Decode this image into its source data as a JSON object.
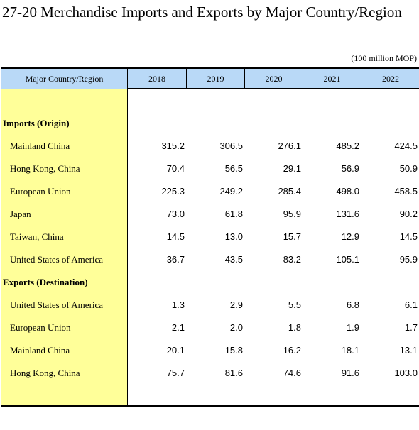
{
  "title": "27-20  Merchandise Imports and Exports by Major Country/Region",
  "unit_note": "(100 million MOP)",
  "header": {
    "first_col": "Major Country/Region",
    "years": [
      "2018",
      "2019",
      "2020",
      "2021",
      "2022"
    ]
  },
  "sections": [
    {
      "label": "Imports (Origin)",
      "rows": [
        {
          "label": "Mainland China",
          "values": [
            "315.2",
            "306.5",
            "276.1",
            "485.2",
            "424.5"
          ]
        },
        {
          "label": "Hong Kong, China",
          "values": [
            "70.4",
            "56.5",
            "29.1",
            "56.9",
            "50.9"
          ]
        },
        {
          "label": "European Union",
          "values": [
            "225.3",
            "249.2",
            "285.4",
            "498.0",
            "458.5"
          ]
        },
        {
          "label": "Japan",
          "values": [
            "73.0",
            "61.8",
            "95.9",
            "131.6",
            "90.2"
          ]
        },
        {
          "label": "Taiwan, China",
          "values": [
            "14.5",
            "13.0",
            "15.7",
            "12.9",
            "14.5"
          ]
        },
        {
          "label": "United States of America",
          "values": [
            "36.7",
            "43.5",
            "83.2",
            "105.1",
            "95.9"
          ]
        }
      ]
    },
    {
      "label": "Exports (Destination)",
      "rows": [
        {
          "label": "United States of America",
          "values": [
            "1.3",
            "2.9",
            "5.5",
            "6.8",
            "6.1"
          ]
        },
        {
          "label": "European Union",
          "values": [
            "2.1",
            "2.0",
            "1.8",
            "1.9",
            "1.7"
          ]
        },
        {
          "label": "Mainland China",
          "values": [
            "20.1",
            "15.8",
            "16.2",
            "18.1",
            "13.1"
          ]
        },
        {
          "label": "Hong Kong, China",
          "values": [
            "75.7",
            "81.6",
            "74.6",
            "91.6",
            "103.0"
          ]
        }
      ]
    }
  ]
}
